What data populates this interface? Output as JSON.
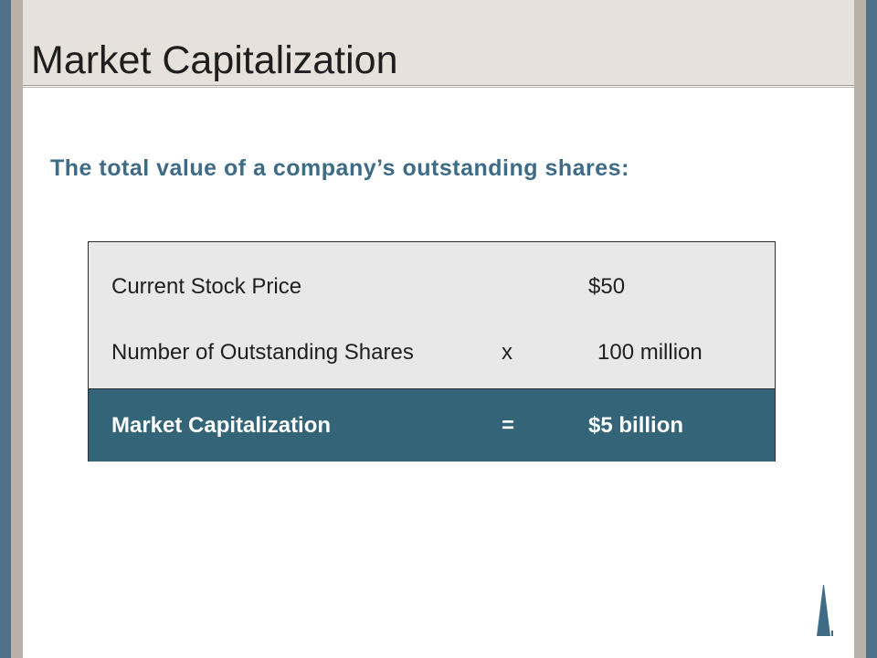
{
  "slide": {
    "title": "Market Capitalization",
    "subtitle": "The total value of a company’s outstanding shares:"
  },
  "calculation": {
    "rows": [
      {
        "label": "Current Stock Price",
        "operator": "",
        "value": "$50"
      },
      {
        "label": "Number of Outstanding Shares",
        "operator": "x",
        "value": "100 million"
      }
    ],
    "result": {
      "label": "Market Capitalization",
      "operator": "=",
      "value": "$5 billion"
    }
  },
  "colors": {
    "accent": "#3e6b86",
    "result_bg": "#336478",
    "frame": "#4e7089",
    "title_band": "#e6e1da"
  },
  "icons": {
    "logo": "tower-logo-icon"
  }
}
